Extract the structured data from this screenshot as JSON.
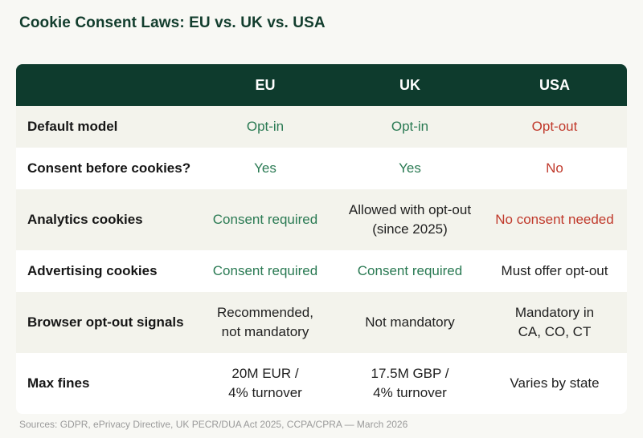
{
  "title": "Cookie Consent Laws: EU vs. UK vs. USA",
  "table": {
    "headers": [
      "",
      "EU",
      "UK",
      "USA"
    ],
    "rows": [
      {
        "label": "Default model",
        "eu": "Opt-in",
        "uk": "Opt-in",
        "usa": "Opt-out"
      },
      {
        "label": "Consent before cookies?",
        "eu": "Yes",
        "uk": "Yes",
        "usa": "No"
      },
      {
        "label": "Analytics cookies",
        "eu": "Consent required",
        "uk_line1": "Allowed with opt-out",
        "uk_line2": "(since 2025)",
        "usa": "No consent needed"
      },
      {
        "label": "Advertising cookies",
        "eu": "Consent required",
        "uk": "Consent required",
        "usa": "Must offer opt-out"
      },
      {
        "label": "Browser opt-out signals",
        "eu_line1": "Recommended,",
        "eu_line2": "not mandatory",
        "uk": "Not mandatory",
        "usa_line1": "Mandatory in",
        "usa_line2": "CA, CO, CT"
      },
      {
        "label": "Max fines",
        "eu_line1": "20M EUR /",
        "eu_line2": "4% turnover",
        "uk_line1": "17.5M GBP /",
        "uk_line2": "4% turnover",
        "usa": "Varies by state"
      }
    ]
  },
  "colors": {
    "header_bg": "#0e3b2d",
    "positive": "#2a7a53",
    "negative": "#c0392b"
  },
  "footer": "Sources: GDPR, ePrivacy Directive, UK PECR/DUA Act 2025, CCPA/CPRA — March 2026"
}
